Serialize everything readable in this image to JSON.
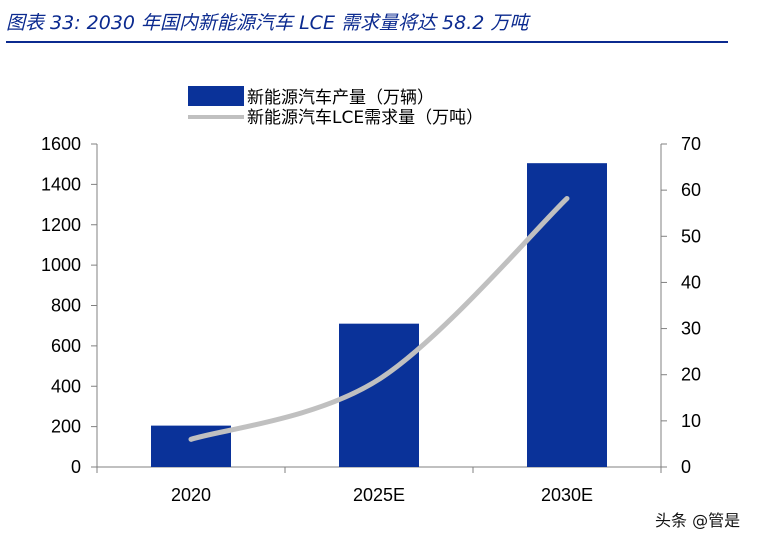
{
  "header": {
    "title": "图表 33:  2030 年国内新能源汽车 LCE 需求量将达 58.2 万吨"
  },
  "watermark": "头条 @管是",
  "colors": {
    "bar": "#0a3299",
    "line": "#c0c0c0",
    "title": "#0b2a8f",
    "axis": "#808080"
  },
  "chart_data": {
    "type": "bar",
    "title": "",
    "categories": [
      "2020",
      "2025E",
      "2030E"
    ],
    "series": [
      {
        "name": "新能源汽车产量（万辆）",
        "type": "bar",
        "axis": "left",
        "values": [
          205,
          710,
          1505
        ]
      },
      {
        "name": "新能源汽车LCE需求量（万吨）",
        "type": "line",
        "axis": "right",
        "values": [
          6,
          19,
          58.2
        ]
      }
    ],
    "y_left": {
      "ylim": [
        0,
        1600
      ],
      "ticks": [
        "0",
        "200",
        "400",
        "600",
        "800",
        "1000",
        "1200",
        "1400",
        "1600"
      ]
    },
    "y_right": {
      "ylim": [
        0,
        70
      ],
      "ticks": [
        "0",
        "10",
        "20",
        "30",
        "40",
        "50",
        "60",
        "70"
      ]
    },
    "xlabel": "",
    "ylabel": "",
    "legend": "top-center",
    "grid": false
  }
}
